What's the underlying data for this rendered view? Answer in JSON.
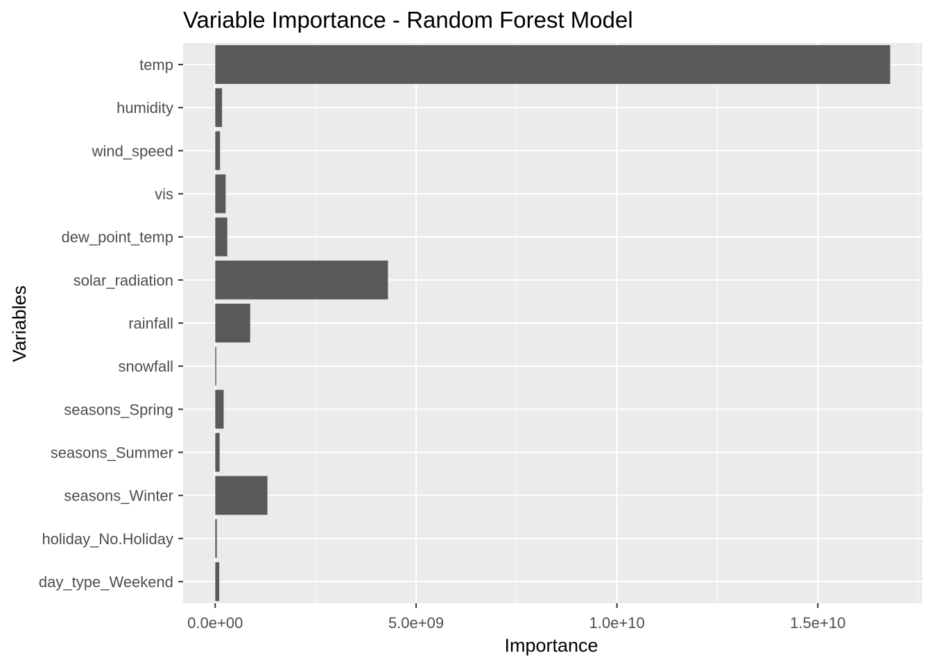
{
  "chart_data": {
    "type": "bar",
    "orientation": "horizontal",
    "title": "Variable Importance - Random Forest Model",
    "xlabel": "Importance",
    "ylabel": "Variables",
    "categories": [
      "temp",
      "humidity",
      "wind_speed",
      "vis",
      "dew_point_temp",
      "solar_radiation",
      "rainfall",
      "snowfall",
      "seasons_Spring",
      "seasons_Summer",
      "seasons_Winter",
      "holiday_No.Holiday",
      "day_type_Weekend"
    ],
    "values": [
      16800000000,
      170000000,
      120000000,
      260000000,
      300000000,
      4300000000,
      870000000,
      20000000,
      210000000,
      110000000,
      1300000000,
      40000000,
      100000000
    ],
    "xlim": [
      -800000000,
      17600000000
    ],
    "x_ticks": [
      0,
      5000000000,
      10000000000,
      15000000000
    ],
    "x_tick_labels": [
      "0.0e+00",
      "5.0e+09",
      "1.0e+10",
      "1.5e+10"
    ],
    "grid": true,
    "legend": "none",
    "colors": {
      "bar": "#595959",
      "panel_background": "#ebebeb",
      "grid": "#ffffff",
      "tick_text": "#4d4d4d",
      "tick_mark": "#333333"
    }
  }
}
